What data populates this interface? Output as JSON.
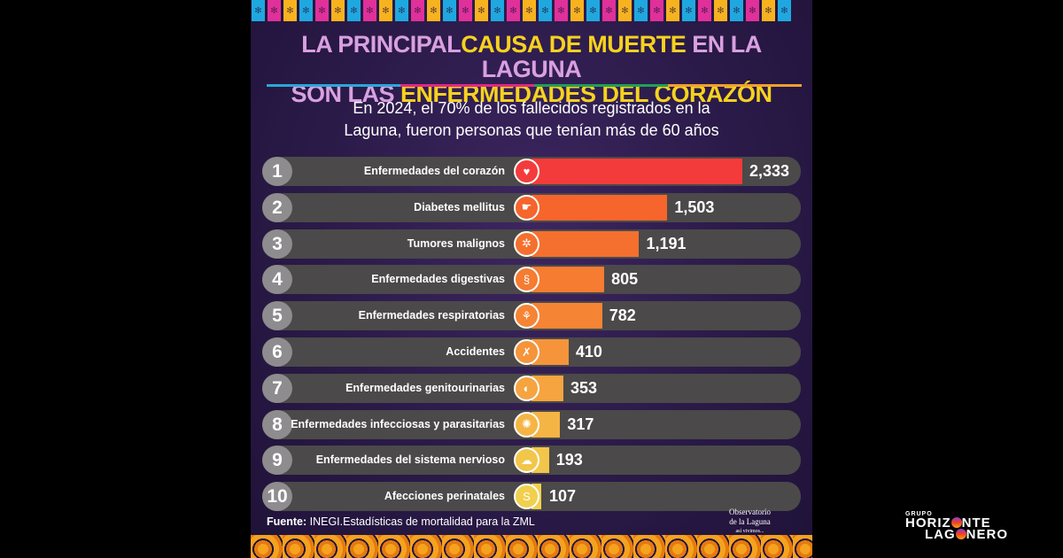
{
  "title": {
    "line1_a": "LA PRINCIPAL",
    "line1_b": "CAUSA DE MUERTE",
    "line1_c": " EN LA LAGUNA",
    "line2_a": "SON LAS ",
    "line2_b": "ENFERMEDADES DEL CORAZÓN"
  },
  "subtitle": {
    "line1": "En 2024, el 70% de los fallecidos registrados en la",
    "line2": "Laguna, fueron personas que tenían más de 60 años"
  },
  "source": {
    "label": "Fuente:",
    "text": " INEGI.Estadísticas de mortalidad para la ZML"
  },
  "logo": {
    "line1": "Observatorio",
    "line2": "de la Laguna",
    "line3": "así vivimos..."
  },
  "brand": {
    "group": "GRUPO",
    "line1a": "HORIZ",
    "line1b": "NTE",
    "line2a": "LAG",
    "line2b": "NERO"
  },
  "colors": {
    "rule": [
      "#2aa7d8",
      "#e0288a",
      "#1fa05a",
      "#f0a030"
    ],
    "flags": [
      "#1fa8e0",
      "#e0309a",
      "#f7b31e"
    ]
  },
  "chart_data": {
    "type": "bar",
    "orientation": "horizontal",
    "xlim": [
      0,
      2333
    ],
    "categories": [
      "Enfermedades del corazón",
      "Diabetes mellitus",
      "Tumores malignos",
      "Enfermedades digestivas",
      "Enfermedades respiratorias",
      "Accidentes",
      "Enfermedades genitourinarias",
      "Enfermedades infecciosas y parasitarias",
      "Enfermedades del sistema nervioso",
      "Afecciones perinatales"
    ],
    "ranks": [
      "1",
      "2",
      "3",
      "4",
      "5",
      "6",
      "7",
      "8",
      "9",
      "10"
    ],
    "values": [
      2333,
      1503,
      1191,
      805,
      782,
      410,
      353,
      317,
      193,
      107
    ],
    "labels": [
      "2,333",
      "1,503",
      "1,191",
      "805",
      "782",
      "410",
      "353",
      "317",
      "193",
      "107"
    ],
    "icons": [
      "heart-icon",
      "finger-prick-icon",
      "tumor-cells-icon",
      "intestine-icon",
      "lungs-icon",
      "fall-accident-icon",
      "kidneys-icon",
      "virus-icon",
      "brain-icon",
      "fetus-icon"
    ],
    "bar_colors": [
      "#f43b3b",
      "#f5652c",
      "#f5702e",
      "#f57c31",
      "#f58434",
      "#f5943a",
      "#f5a440",
      "#f5b545",
      "#f2c64a",
      "#f0d04e"
    ]
  }
}
